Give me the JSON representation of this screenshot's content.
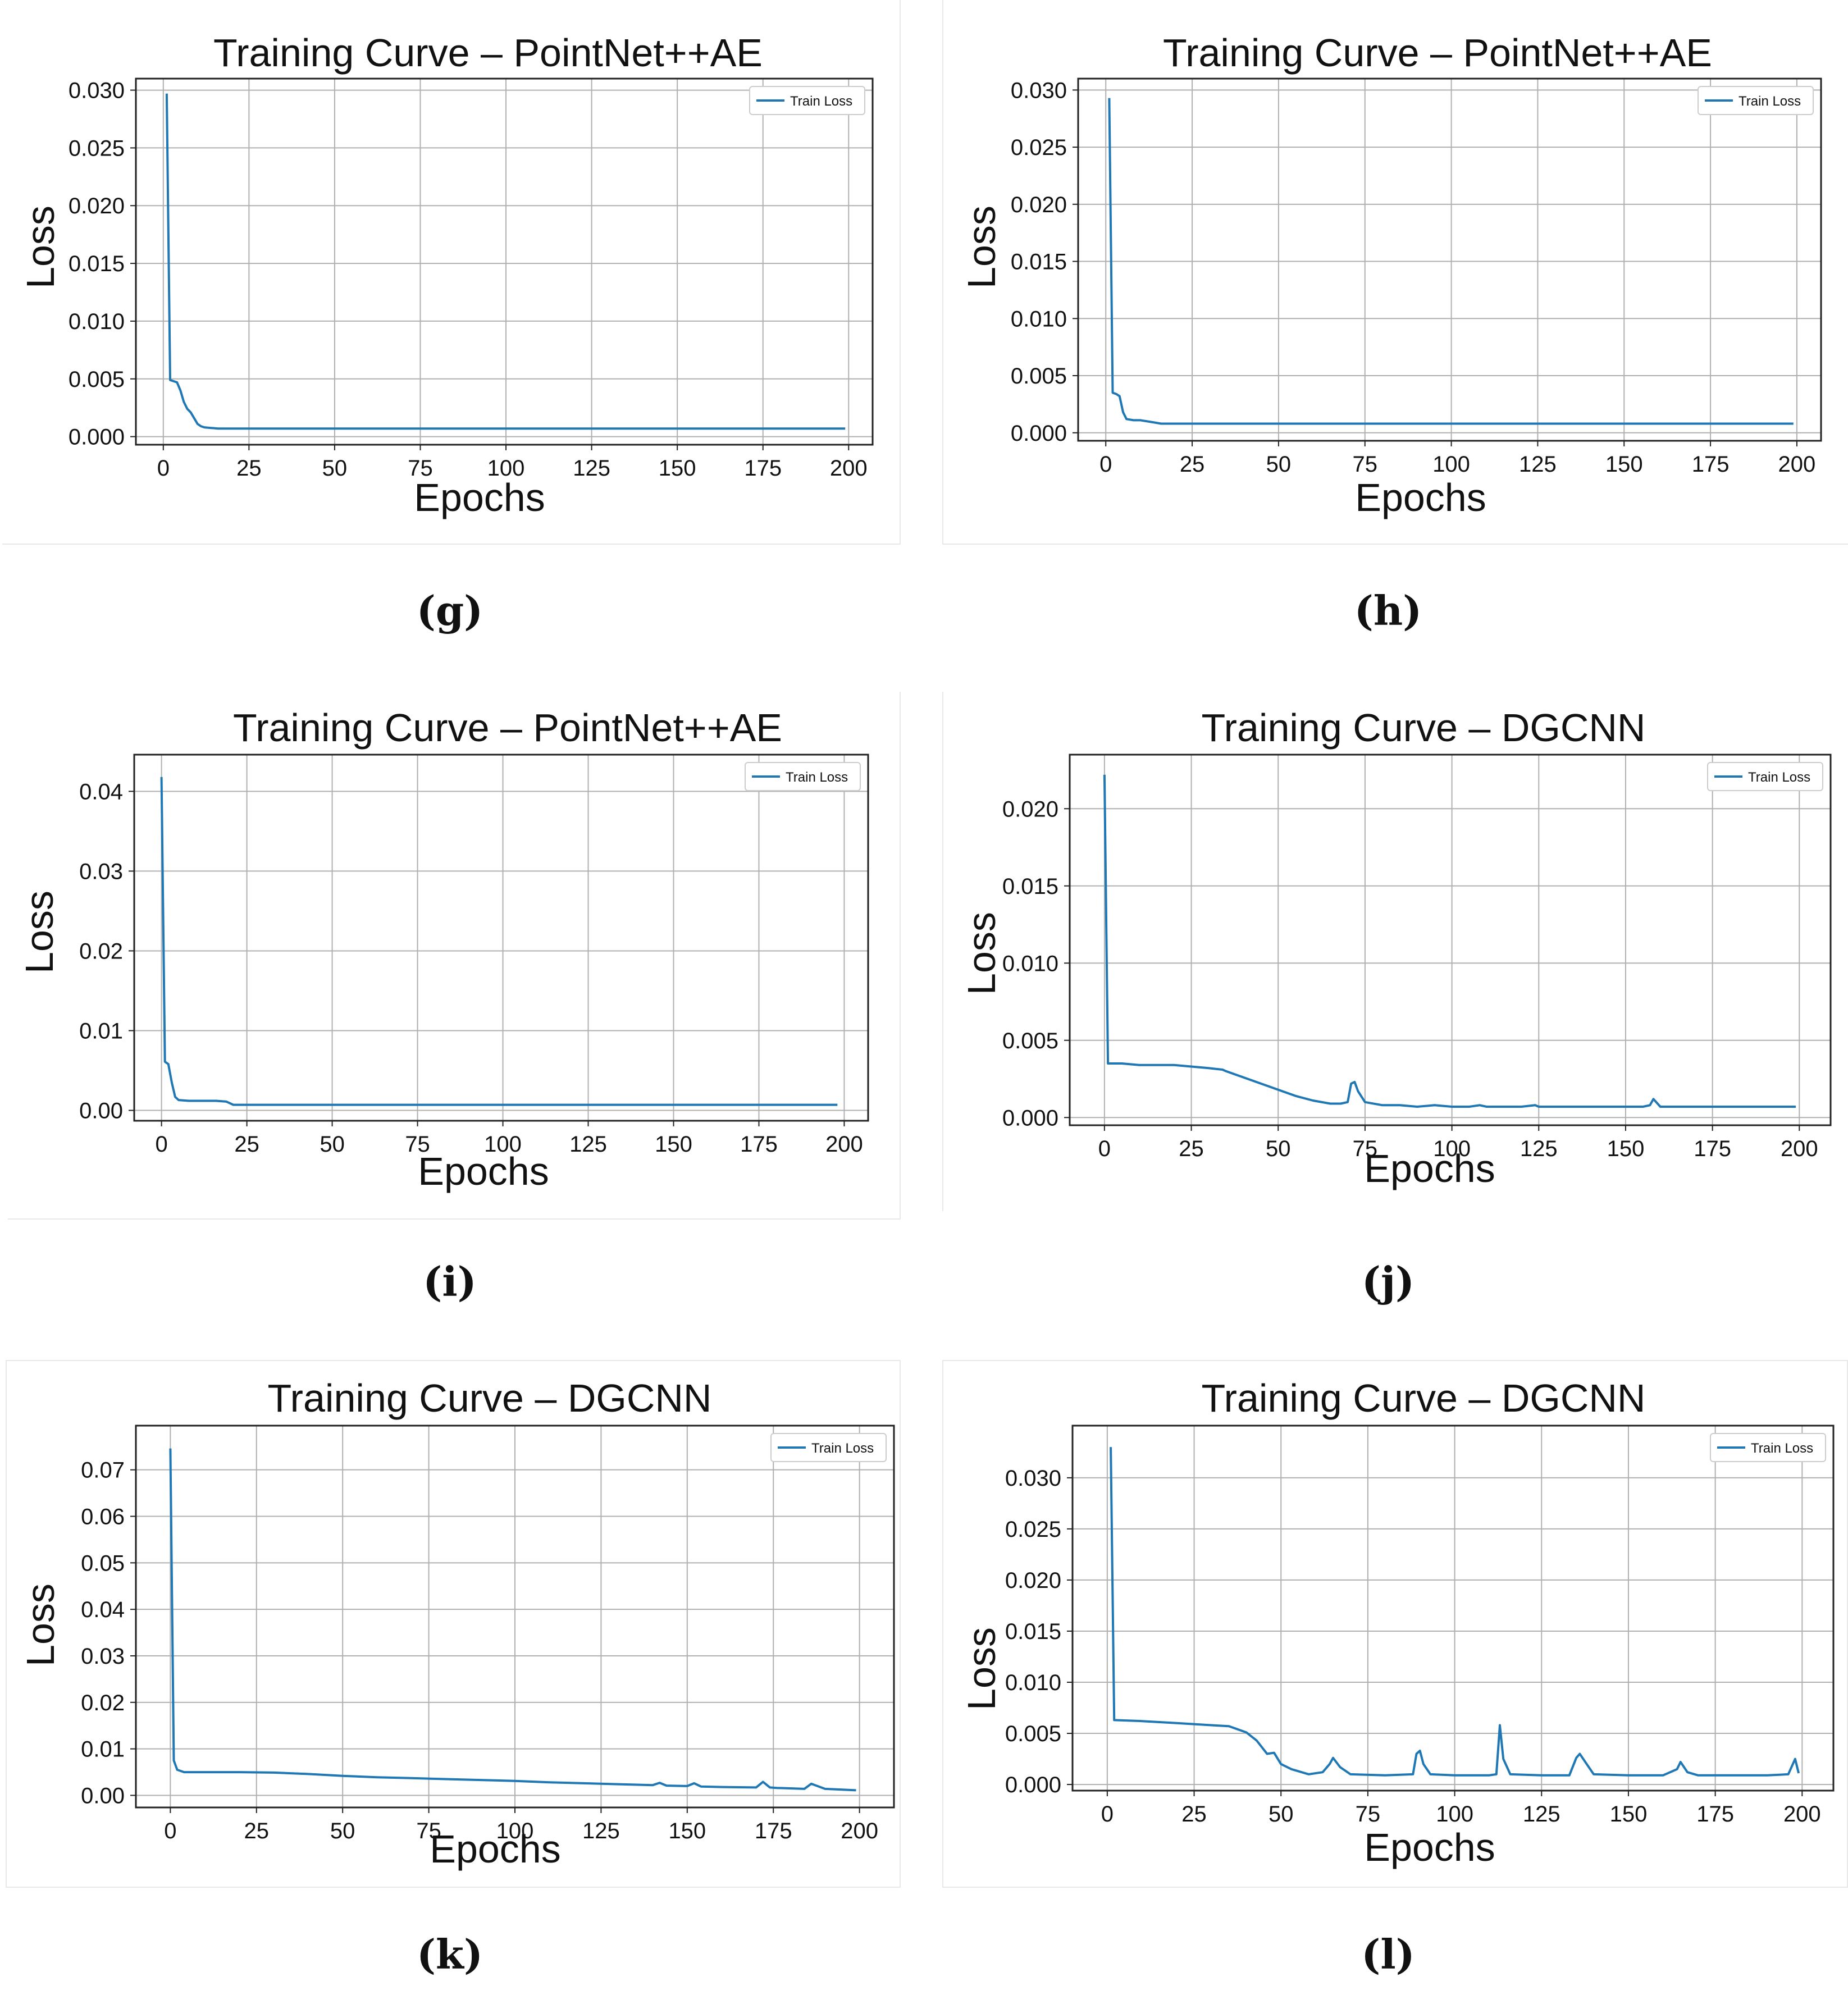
{
  "chart_data": [
    {
      "id": "g",
      "type": "line",
      "caption": "(g)",
      "title": "Training Curve – PointNet++AE",
      "xlabel": "Epochs",
      "ylabel": "Loss",
      "xlim": [
        -8,
        207
      ],
      "ylim": [
        -0.0007,
        0.031
      ],
      "xticks": [
        0,
        25,
        50,
        75,
        100,
        125,
        150,
        175,
        200
      ],
      "xtick_labels": [
        "0",
        "25",
        "50",
        "75",
        "100",
        "125",
        "150",
        "175",
        "200"
      ],
      "yticks": [
        0.0,
        0.005,
        0.01,
        0.015,
        0.02,
        0.025,
        0.03
      ],
      "ytick_labels": [
        "0.000",
        "0.005",
        "0.010",
        "0.015",
        "0.020",
        "0.025",
        "0.030"
      ],
      "grid": true,
      "legend": "upper right",
      "series": [
        {
          "name": "Train Loss",
          "color": "#1f77b4",
          "x": [
            1,
            2,
            3,
            4,
            5,
            6,
            7,
            8,
            9,
            10,
            11,
            12,
            14,
            16,
            20,
            40,
            100,
            150,
            199
          ],
          "y": [
            0.0297,
            0.0049,
            0.0048,
            0.0047,
            0.004,
            0.003,
            0.0024,
            0.0021,
            0.0016,
            0.0011,
            0.0009,
            0.0008,
            0.00075,
            0.0007,
            0.0007,
            0.0007,
            0.0007,
            0.0007,
            0.0007
          ]
        }
      ]
    },
    {
      "id": "h",
      "type": "line",
      "caption": "(h)",
      "title": "Training Curve – PointNet++AE",
      "xlabel": "Epochs",
      "ylabel": "Loss",
      "xlim": [
        -8,
        207
      ],
      "ylim": [
        -0.0007,
        0.031
      ],
      "xticks": [
        0,
        25,
        50,
        75,
        100,
        125,
        150,
        175,
        200
      ],
      "xtick_labels": [
        "0",
        "25",
        "50",
        "75",
        "100",
        "125",
        "150",
        "175",
        "200"
      ],
      "yticks": [
        0.0,
        0.005,
        0.01,
        0.015,
        0.02,
        0.025,
        0.03
      ],
      "ytick_labels": [
        "0.000",
        "0.005",
        "0.010",
        "0.015",
        "0.020",
        "0.025",
        "0.030"
      ],
      "grid": true,
      "legend": "upper right",
      "series": [
        {
          "name": "Train Loss",
          "color": "#1f77b4",
          "x": [
            1,
            2,
            3,
            4,
            5,
            6,
            8,
            10,
            12,
            14,
            16,
            20,
            50,
            100,
            150,
            199
          ],
          "y": [
            0.0293,
            0.0035,
            0.0034,
            0.0032,
            0.0018,
            0.0012,
            0.0011,
            0.0011,
            0.001,
            0.0009,
            0.0008,
            0.0008,
            0.0008,
            0.0008,
            0.0008,
            0.0008
          ]
        }
      ]
    },
    {
      "id": "i",
      "type": "line",
      "caption": "(i)",
      "title": "Training Curve – PointNet++AE",
      "xlabel": "Epochs",
      "ylabel": "Loss",
      "xlim": [
        -8,
        207
      ],
      "ylim": [
        -0.0013,
        0.0446
      ],
      "xticks": [
        0,
        25,
        50,
        75,
        100,
        125,
        150,
        175,
        200
      ],
      "xtick_labels": [
        "0",
        "25",
        "50",
        "75",
        "100",
        "125",
        "150",
        "175",
        "200"
      ],
      "yticks": [
        0.0,
        0.01,
        0.02,
        0.03,
        0.04
      ],
      "ytick_labels": [
        "0.00",
        "0.01",
        "0.02",
        "0.03",
        "0.04"
      ],
      "grid": true,
      "legend": "upper right",
      "series": [
        {
          "name": "Train Loss",
          "color": "#1f77b4",
          "x": [
            0,
            1,
            2,
            3,
            4,
            5,
            8,
            12,
            16,
            19,
            20,
            21,
            25,
            50,
            100,
            150,
            198
          ],
          "y": [
            0.0418,
            0.0061,
            0.0058,
            0.0035,
            0.0017,
            0.0013,
            0.0012,
            0.0012,
            0.0012,
            0.0011,
            0.0009,
            0.0007,
            0.0007,
            0.0007,
            0.0007,
            0.0007,
            0.0007
          ]
        }
      ]
    },
    {
      "id": "j",
      "type": "line",
      "caption": "(j)",
      "title": "Training Curve – DGCNN",
      "xlabel": "Epochs",
      "ylabel": "Loss",
      "xlim": [
        -10,
        209
      ],
      "ylim": [
        -0.0005,
        0.0235
      ],
      "xticks": [
        0,
        25,
        50,
        75,
        100,
        125,
        150,
        175,
        200
      ],
      "xtick_labels": [
        "0",
        "25",
        "50",
        "75",
        "100",
        "125",
        "150",
        "175",
        "200"
      ],
      "yticks": [
        0.0,
        0.005,
        0.01,
        0.015,
        0.02
      ],
      "ytick_labels": [
        "0.000",
        "0.005",
        "0.010",
        "0.015",
        "0.020"
      ],
      "grid": true,
      "legend": "upper right",
      "series": [
        {
          "name": "Train Loss",
          "color": "#1f77b4",
          "x": [
            0,
            1,
            5,
            10,
            15,
            20,
            25,
            30,
            34,
            35,
            40,
            45,
            50,
            55,
            60,
            65,
            68,
            70,
            71,
            72,
            73,
            75,
            80,
            85,
            90,
            95,
            100,
            105,
            108,
            110,
            115,
            120,
            124,
            125,
            130,
            140,
            150,
            155,
            157,
            158,
            160,
            170,
            180,
            190,
            199
          ],
          "y": [
            0.0222,
            0.0035,
            0.0035,
            0.0034,
            0.0034,
            0.0034,
            0.0033,
            0.0032,
            0.0031,
            0.003,
            0.0026,
            0.0022,
            0.0018,
            0.0014,
            0.0011,
            0.0009,
            0.0009,
            0.001,
            0.0022,
            0.0023,
            0.0017,
            0.001,
            0.0008,
            0.0008,
            0.0007,
            0.0008,
            0.0007,
            0.0007,
            0.0008,
            0.0007,
            0.0007,
            0.0007,
            0.0008,
            0.0007,
            0.0007,
            0.0007,
            0.0007,
            0.0007,
            0.0008,
            0.0012,
            0.0007,
            0.0007,
            0.0007,
            0.0007,
            0.0007
          ]
        }
      ]
    },
    {
      "id": "k",
      "type": "line",
      "caption": "(k)",
      "title": "Training Curve – DGCNN",
      "xlabel": "Epochs",
      "ylabel": "Loss",
      "xlim": [
        -10,
        210
      ],
      "ylim": [
        -0.0026,
        0.0795
      ],
      "xticks": [
        0,
        25,
        50,
        75,
        100,
        125,
        150,
        175,
        200
      ],
      "xtick_labels": [
        "0",
        "25",
        "50",
        "75",
        "100",
        "125",
        "150",
        "175",
        "200"
      ],
      "yticks": [
        0.0,
        0.01,
        0.02,
        0.03,
        0.04,
        0.05,
        0.06,
        0.07
      ],
      "ytick_labels": [
        "0.00",
        "0.01",
        "0.02",
        "0.03",
        "0.04",
        "0.05",
        "0.06",
        "0.07"
      ],
      "grid": true,
      "legend": "upper right",
      "series": [
        {
          "name": "Train Loss",
          "color": "#1f77b4",
          "x": [
            0,
            1,
            2,
            4,
            10,
            20,
            30,
            40,
            50,
            60,
            70,
            80,
            90,
            100,
            110,
            120,
            130,
            140,
            142,
            144,
            150,
            152,
            154,
            160,
            170,
            172,
            174,
            176,
            180,
            184,
            186,
            190,
            199
          ],
          "y": [
            0.0746,
            0.0075,
            0.0055,
            0.005,
            0.005,
            0.005,
            0.0049,
            0.0046,
            0.0042,
            0.0039,
            0.0037,
            0.0035,
            0.0033,
            0.0031,
            0.0028,
            0.0026,
            0.0024,
            0.0022,
            0.0027,
            0.0021,
            0.002,
            0.0026,
            0.0019,
            0.0018,
            0.0017,
            0.0029,
            0.0017,
            0.0016,
            0.0015,
            0.0014,
            0.0025,
            0.0014,
            0.0011
          ]
        }
      ]
    },
    {
      "id": "l",
      "type": "line",
      "caption": "(l)",
      "title": "Training Curve – DGCNN",
      "xlabel": "Epochs",
      "ylabel": "Loss",
      "xlim": [
        -10,
        209
      ],
      "ylim": [
        -0.0006,
        0.0351
      ],
      "xticks": [
        0,
        25,
        50,
        75,
        100,
        125,
        150,
        175,
        200
      ],
      "xtick_labels": [
        "0",
        "25",
        "50",
        "75",
        "100",
        "125",
        "150",
        "175",
        "200"
      ],
      "yticks": [
        0.0,
        0.005,
        0.01,
        0.015,
        0.02,
        0.025,
        0.03
      ],
      "ytick_labels": [
        "0.000",
        "0.005",
        "0.010",
        "0.015",
        "0.020",
        "0.025",
        "0.030"
      ],
      "grid": true,
      "legend": "upper right",
      "series": [
        {
          "name": "Train Loss",
          "color": "#1f77b4",
          "x": [
            1,
            2,
            10,
            20,
            30,
            35,
            40,
            43,
            46,
            48,
            50,
            53,
            58,
            62,
            64,
            65,
            67,
            70,
            80,
            88,
            89,
            90,
            91,
            93,
            100,
            110,
            112,
            113,
            114,
            116,
            125,
            133,
            135,
            136,
            138,
            140,
            150,
            160,
            164,
            165,
            167,
            170,
            180,
            190,
            196,
            198,
            199
          ],
          "y": [
            0.033,
            0.0063,
            0.0062,
            0.006,
            0.0058,
            0.0057,
            0.0051,
            0.0043,
            0.003,
            0.0031,
            0.002,
            0.0015,
            0.001,
            0.0012,
            0.002,
            0.0026,
            0.0017,
            0.001,
            0.0009,
            0.001,
            0.003,
            0.0033,
            0.002,
            0.001,
            0.0009,
            0.0009,
            0.001,
            0.0058,
            0.0025,
            0.001,
            0.0009,
            0.0009,
            0.0026,
            0.003,
            0.002,
            0.001,
            0.0009,
            0.0009,
            0.0015,
            0.0022,
            0.0012,
            0.0009,
            0.0009,
            0.0009,
            0.001,
            0.0025,
            0.0011
          ]
        }
      ]
    }
  ]
}
